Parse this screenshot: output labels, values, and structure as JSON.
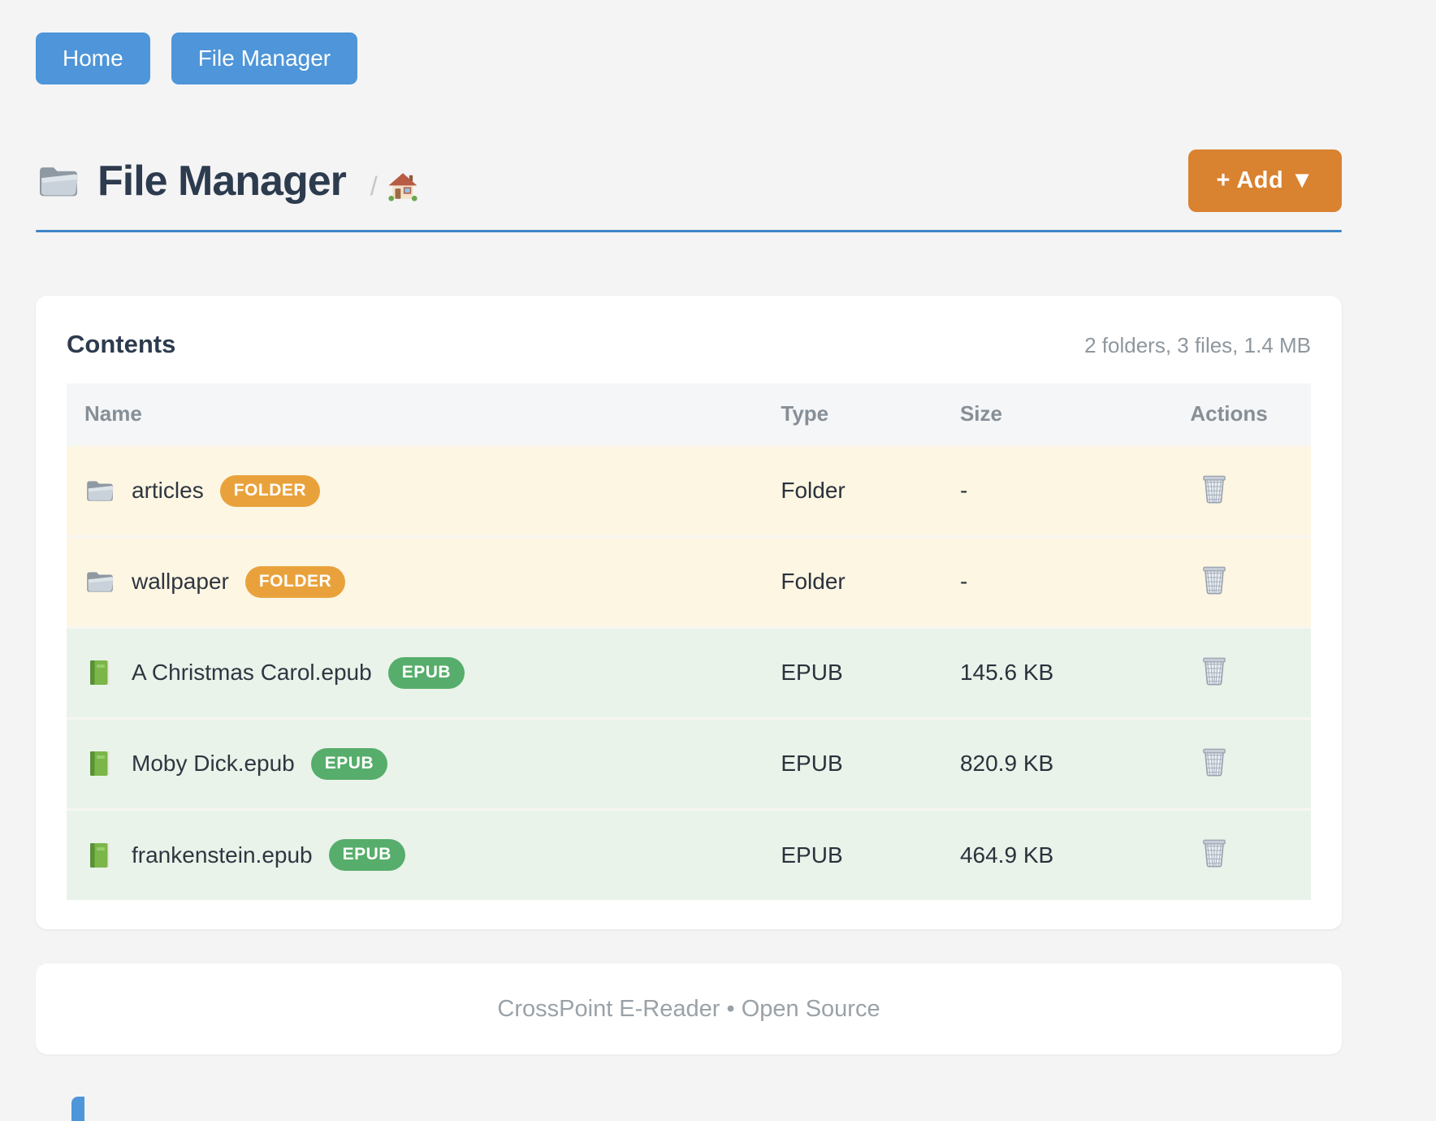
{
  "nav": {
    "home_label": "Home",
    "file_manager_label": "File Manager"
  },
  "header": {
    "title": "File Manager",
    "title_icon": "folder-icon",
    "breadcrumb_separator": "/",
    "breadcrumb_home_icon": "home-icon",
    "add_button_label": "+ Add ▼"
  },
  "contents": {
    "heading": "Contents",
    "summary": "2 folders, 3 files, 1.4 MB",
    "columns": {
      "name": "Name",
      "type": "Type",
      "size": "Size",
      "actions": "Actions"
    },
    "rows": [
      {
        "icon": "folder-icon",
        "name": "articles",
        "badge": "FOLDER",
        "type": "Folder",
        "size": "-",
        "kind": "folder"
      },
      {
        "icon": "folder-icon",
        "name": "wallpaper",
        "badge": "FOLDER",
        "type": "Folder",
        "size": "-",
        "kind": "folder"
      },
      {
        "icon": "book-icon",
        "name": "A Christmas Carol.epub",
        "badge": "EPUB",
        "type": "EPUB",
        "size": "145.6 KB",
        "kind": "file"
      },
      {
        "icon": "book-icon",
        "name": "Moby Dick.epub",
        "badge": "EPUB",
        "type": "EPUB",
        "size": "820.9 KB",
        "kind": "file"
      },
      {
        "icon": "book-icon",
        "name": "frankenstein.epub",
        "badge": "EPUB",
        "type": "EPUB",
        "size": "464.9 KB",
        "kind": "file"
      }
    ],
    "action_icon": "trash-icon"
  },
  "footer": {
    "text": "CrossPoint E-Reader • Open Source"
  },
  "colors": {
    "primary_blue": "#4e95d9",
    "accent_orange": "#d9822f",
    "badge_folder": "#e9a23b",
    "badge_epub": "#57ad6b",
    "row_folder_bg": "#fdf6e3",
    "row_file_bg": "#e9f3ea",
    "rule_blue": "#3d85c6",
    "title_dark": "#2d3b4e",
    "muted_gray": "#8e979e"
  }
}
